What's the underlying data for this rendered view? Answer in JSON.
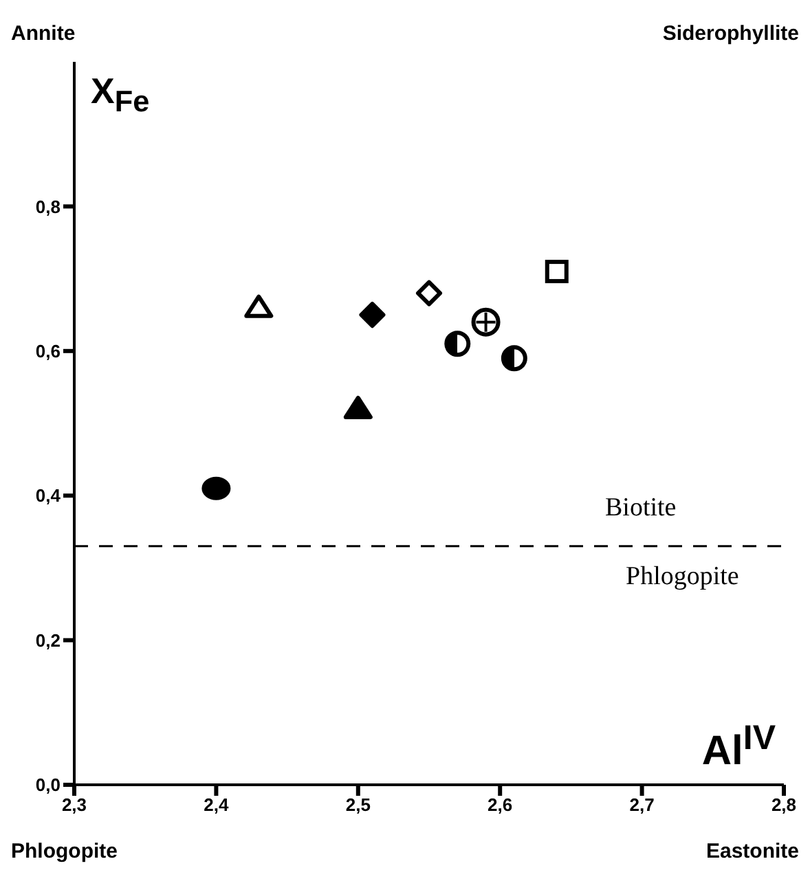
{
  "chart_data": {
    "type": "scatter",
    "xlabel": "Al$^{IV}$",
    "ylabel": "X$_{Fe}$",
    "xlim": [
      2.3,
      2.8
    ],
    "ylim": [
      0,
      1
    ],
    "xticks": [
      {
        "value": 2.3,
        "label": "2,3"
      },
      {
        "value": 2.4,
        "label": "2,4"
      },
      {
        "value": 2.5,
        "label": "2,5"
      },
      {
        "value": 2.6,
        "label": "2,6"
      },
      {
        "value": 2.7,
        "label": "2,7"
      },
      {
        "value": 2.8,
        "label": "2,8"
      }
    ],
    "yticks": [
      {
        "value": 0,
        "label": "0,0"
      },
      {
        "value": 0.2,
        "label": "0,2"
      },
      {
        "value": 0.4,
        "label": "0,4"
      },
      {
        "value": 0.6,
        "label": "0,6"
      },
      {
        "value": 0.8,
        "label": "0,8"
      }
    ],
    "series": [
      {
        "color": "#000000",
        "marker": "circle",
        "x": [
          2.4
        ],
        "values": [
          0.41
        ]
      },
      {
        "color": "#000000",
        "marker": "triangle",
        "x": [
          2.43
        ],
        "values": [
          0.66
        ]
      },
      {
        "color": "#000000",
        "marker": "triangle",
        "x": [
          2.5
        ],
        "values": [
          0.52
        ]
      },
      {
        "color": "#000000",
        "marker": "diamond",
        "x": [
          2.51
        ],
        "values": [
          0.65
        ]
      },
      {
        "color": "#000000",
        "marker": "diamond",
        "x": [
          2.55
        ],
        "values": [
          0.68
        ]
      },
      {
        "color": "#000000",
        "marker": "circle",
        "x": [
          2.57
        ],
        "values": [
          0.61
        ]
      },
      {
        "color": "#000000",
        "marker": "circle",
        "x": [
          2.59
        ],
        "values": [
          0.64
        ]
      },
      {
        "color": "#000000",
        "marker": "circle",
        "x": [
          2.61
        ],
        "values": [
          0.59
        ]
      },
      {
        "color": "#000000",
        "marker": "square",
        "x": [
          2.64
        ],
        "values": [
          0.71
        ]
      }
    ],
    "ref_lines": [
      {
        "axis": "y",
        "value": 0.33,
        "line_style": "dashed",
        "color": "#000000"
      }
    ],
    "annotations": [
      "Annite",
      "Siderophyllite",
      "Phlogopite",
      "Eastonite",
      "Biotite",
      "Phlogopite"
    ]
  }
}
